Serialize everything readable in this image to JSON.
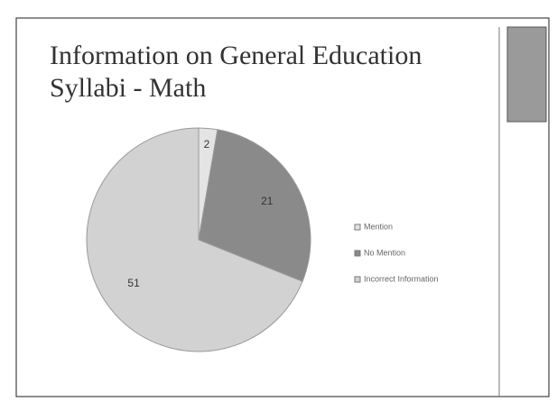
{
  "chart_data": {
    "type": "pie",
    "title": "Information on General Education Syllabi  - Math",
    "categories": [
      "Mention",
      "No Mention",
      "Incorrect Information"
    ],
    "values": [
      2,
      21,
      51
    ],
    "colors": [
      "#e4e4e4",
      "#8a8a8a",
      "#d2d2d2"
    ],
    "legend": "right"
  }
}
